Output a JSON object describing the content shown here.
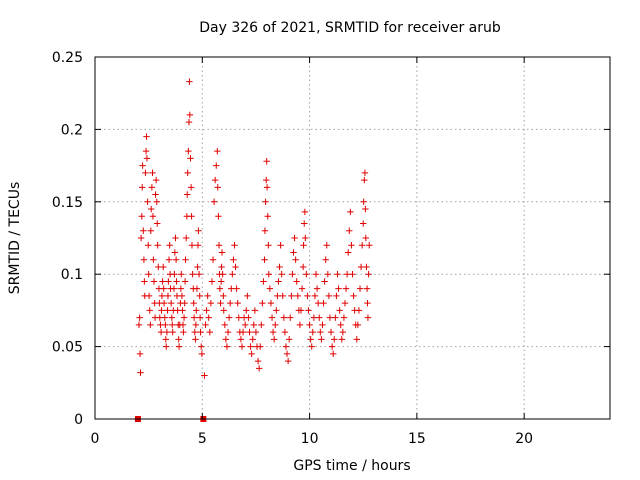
{
  "chart_data": {
    "type": "scatter",
    "title": "Day 326 of 2021, SRMTID for receiver arub",
    "xlabel": "GPS time / hours",
    "ylabel": "SRMTID / TECUs",
    "xlim": [
      0,
      24
    ],
    "ylim": [
      0,
      0.25
    ],
    "xticks": [
      0,
      5,
      10,
      15,
      20
    ],
    "xtick_labels": [
      "0",
      "5",
      "10",
      "15",
      "20"
    ],
    "yticks": [
      0,
      0.05,
      0.1,
      0.15,
      0.2,
      0.25
    ],
    "ytick_labels": [
      "0",
      "0.05",
      "0.1",
      "0.15",
      "0.2",
      "0.25"
    ],
    "grid": true,
    "marker": "plus",
    "color": "#e00000",
    "zero_markers": [
      {
        "x": 2.0,
        "y": 0
      },
      {
        "x": 5.05,
        "y": 0
      }
    ],
    "points": [
      [
        2.05,
        0.065
      ],
      [
        2.08,
        0.07
      ],
      [
        2.1,
        0.045
      ],
      [
        2.12,
        0.032
      ],
      [
        2.15,
        0.125
      ],
      [
        2.18,
        0.14
      ],
      [
        2.2,
        0.16
      ],
      [
        2.22,
        0.175
      ],
      [
        2.25,
        0.13
      ],
      [
        2.28,
        0.11
      ],
      [
        2.3,
        0.095
      ],
      [
        2.32,
        0.085
      ],
      [
        2.35,
        0.17
      ],
      [
        2.38,
        0.185
      ],
      [
        2.4,
        0.195
      ],
      [
        2.42,
        0.18
      ],
      [
        2.45,
        0.15
      ],
      [
        2.48,
        0.12
      ],
      [
        2.5,
        0.1
      ],
      [
        2.52,
        0.085
      ],
      [
        2.55,
        0.075
      ],
      [
        2.58,
        0.065
      ],
      [
        2.6,
        0.13
      ],
      [
        2.62,
        0.145
      ],
      [
        2.65,
        0.16
      ],
      [
        2.68,
        0.17
      ],
      [
        2.7,
        0.14
      ],
      [
        2.72,
        0.11
      ],
      [
        2.75,
        0.095
      ],
      [
        2.78,
        0.08
      ],
      [
        2.8,
        0.07
      ],
      [
        2.82,
        0.155
      ],
      [
        2.85,
        0.165
      ],
      [
        2.88,
        0.15
      ],
      [
        2.9,
        0.135
      ],
      [
        2.92,
        0.12
      ],
      [
        2.95,
        0.105
      ],
      [
        2.98,
        0.09
      ],
      [
        3.0,
        0.08
      ],
      [
        3.02,
        0.07
      ],
      [
        3.05,
        0.065
      ],
      [
        3.08,
        0.06
      ],
      [
        3.1,
        0.075
      ],
      [
        3.12,
        0.085
      ],
      [
        3.15,
        0.095
      ],
      [
        3.18,
        0.105
      ],
      [
        3.2,
        0.09
      ],
      [
        3.22,
        0.08
      ],
      [
        3.25,
        0.07
      ],
      [
        3.28,
        0.065
      ],
      [
        3.3,
        0.055
      ],
      [
        3.32,
        0.05
      ],
      [
        3.35,
        0.06
      ],
      [
        3.38,
        0.075
      ],
      [
        3.4,
        0.085
      ],
      [
        3.42,
        0.095
      ],
      [
        3.45,
        0.11
      ],
      [
        3.48,
        0.12
      ],
      [
        3.5,
        0.1
      ],
      [
        3.52,
        0.09
      ],
      [
        3.55,
        0.08
      ],
      [
        3.58,
        0.07
      ],
      [
        3.6,
        0.065
      ],
      [
        3.62,
        0.06
      ],
      [
        3.65,
        0.075
      ],
      [
        3.68,
        0.09
      ],
      [
        3.7,
        0.1
      ],
      [
        3.72,
        0.115
      ],
      [
        3.75,
        0.125
      ],
      [
        3.78,
        0.11
      ],
      [
        3.8,
        0.095
      ],
      [
        3.82,
        0.085
      ],
      [
        3.85,
        0.075
      ],
      [
        3.88,
        0.065
      ],
      [
        3.9,
        0.055
      ],
      [
        3.92,
        0.05
      ],
      [
        3.95,
        0.065
      ],
      [
        3.98,
        0.08
      ],
      [
        4.0,
        0.09
      ],
      [
        4.02,
        0.1
      ],
      [
        4.05,
        0.085
      ],
      [
        4.08,
        0.075
      ],
      [
        4.1,
        0.065
      ],
      [
        4.12,
        0.06
      ],
      [
        4.15,
        0.07
      ],
      [
        4.18,
        0.08
      ],
      [
        4.2,
        0.095
      ],
      [
        4.22,
        0.11
      ],
      [
        4.25,
        0.125
      ],
      [
        4.28,
        0.14
      ],
      [
        4.3,
        0.155
      ],
      [
        4.32,
        0.17
      ],
      [
        4.35,
        0.185
      ],
      [
        4.38,
        0.205
      ],
      [
        4.4,
        0.233
      ],
      [
        4.42,
        0.21
      ],
      [
        4.45,
        0.18
      ],
      [
        4.48,
        0.16
      ],
      [
        4.5,
        0.14
      ],
      [
        4.52,
        0.12
      ],
      [
        4.55,
        0.1
      ],
      [
        4.58,
        0.09
      ],
      [
        4.6,
        0.08
      ],
      [
        4.62,
        0.07
      ],
      [
        4.65,
        0.06
      ],
      [
        4.68,
        0.055
      ],
      [
        4.7,
        0.065
      ],
      [
        4.72,
        0.075
      ],
      [
        4.75,
        0.09
      ],
      [
        4.78,
        0.105
      ],
      [
        4.8,
        0.12
      ],
      [
        4.82,
        0.13
      ],
      [
        4.85,
        0.1
      ],
      [
        4.88,
        0.085
      ],
      [
        4.9,
        0.07
      ],
      [
        4.92,
        0.06
      ],
      [
        4.95,
        0.05
      ],
      [
        4.98,
        0.045
      ],
      [
        5.1,
        0.03
      ],
      [
        5.15,
        0.065
      ],
      [
        5.2,
        0.075
      ],
      [
        5.25,
        0.085
      ],
      [
        5.3,
        0.07
      ],
      [
        5.35,
        0.06
      ],
      [
        5.4,
        0.08
      ],
      [
        5.45,
        0.095
      ],
      [
        5.5,
        0.11
      ],
      [
        5.55,
        0.15
      ],
      [
        5.6,
        0.165
      ],
      [
        5.65,
        0.175
      ],
      [
        5.7,
        0.185
      ],
      [
        5.72,
        0.16
      ],
      [
        5.75,
        0.14
      ],
      [
        5.78,
        0.12
      ],
      [
        5.8,
        0.1
      ],
      [
        5.82,
        0.09
      ],
      [
        5.85,
        0.08
      ],
      [
        5.88,
        0.095
      ],
      [
        5.9,
        0.105
      ],
      [
        5.92,
        0.115
      ],
      [
        5.95,
        0.1
      ],
      [
        5.98,
        0.085
      ],
      [
        6.0,
        0.075
      ],
      [
        6.05,
        0.065
      ],
      [
        6.1,
        0.055
      ],
      [
        6.15,
        0.05
      ],
      [
        6.2,
        0.06
      ],
      [
        6.25,
        0.07
      ],
      [
        6.3,
        0.08
      ],
      [
        6.35,
        0.09
      ],
      [
        6.4,
        0.1
      ],
      [
        6.45,
        0.11
      ],
      [
        6.5,
        0.12
      ],
      [
        6.55,
        0.105
      ],
      [
        6.6,
        0.09
      ],
      [
        6.65,
        0.08
      ],
      [
        6.7,
        0.07
      ],
      [
        6.75,
        0.06
      ],
      [
        6.8,
        0.055
      ],
      [
        6.85,
        0.05
      ],
      [
        6.9,
        0.06
      ],
      [
        6.95,
        0.07
      ],
      [
        7.0,
        0.065
      ],
      [
        7.05,
        0.075
      ],
      [
        7.1,
        0.085
      ],
      [
        7.15,
        0.07
      ],
      [
        7.2,
        0.06
      ],
      [
        7.25,
        0.05
      ],
      [
        7.3,
        0.045
      ],
      [
        7.35,
        0.055
      ],
      [
        7.4,
        0.065
      ],
      [
        7.45,
        0.075
      ],
      [
        7.5,
        0.06
      ],
      [
        7.55,
        0.05
      ],
      [
        7.6,
        0.04
      ],
      [
        7.65,
        0.035
      ],
      [
        7.7,
        0.05
      ],
      [
        7.75,
        0.065
      ],
      [
        7.8,
        0.08
      ],
      [
        7.85,
        0.095
      ],
      [
        7.9,
        0.11
      ],
      [
        7.92,
        0.13
      ],
      [
        7.95,
        0.15
      ],
      [
        7.98,
        0.165
      ],
      [
        8.0,
        0.178
      ],
      [
        8.02,
        0.16
      ],
      [
        8.05,
        0.14
      ],
      [
        8.08,
        0.12
      ],
      [
        8.1,
        0.1
      ],
      [
        8.15,
        0.09
      ],
      [
        8.2,
        0.08
      ],
      [
        8.25,
        0.07
      ],
      [
        8.3,
        0.06
      ],
      [
        8.35,
        0.055
      ],
      [
        8.4,
        0.065
      ],
      [
        8.45,
        0.075
      ],
      [
        8.5,
        0.085
      ],
      [
        8.55,
        0.095
      ],
      [
        8.6,
        0.105
      ],
      [
        8.65,
        0.12
      ],
      [
        8.7,
        0.1
      ],
      [
        8.75,
        0.085
      ],
      [
        8.8,
        0.07
      ],
      [
        8.85,
        0.06
      ],
      [
        8.9,
        0.05
      ],
      [
        8.95,
        0.045
      ],
      [
        9.0,
        0.04
      ],
      [
        9.05,
        0.055
      ],
      [
        9.1,
        0.07
      ],
      [
        9.15,
        0.085
      ],
      [
        9.2,
        0.1
      ],
      [
        9.25,
        0.115
      ],
      [
        9.3,
        0.125
      ],
      [
        9.35,
        0.11
      ],
      [
        9.4,
        0.095
      ],
      [
        9.45,
        0.085
      ],
      [
        9.5,
        0.075
      ],
      [
        9.55,
        0.065
      ],
      [
        9.6,
        0.075
      ],
      [
        9.65,
        0.09
      ],
      [
        9.7,
        0.105
      ],
      [
        9.72,
        0.12
      ],
      [
        9.75,
        0.135
      ],
      [
        9.78,
        0.143
      ],
      [
        9.8,
        0.125
      ],
      [
        9.85,
        0.1
      ],
      [
        9.9,
        0.085
      ],
      [
        9.95,
        0.075
      ],
      [
        10.0,
        0.065
      ],
      [
        10.05,
        0.055
      ],
      [
        10.1,
        0.05
      ],
      [
        10.15,
        0.06
      ],
      [
        10.2,
        0.07
      ],
      [
        10.25,
        0.085
      ],
      [
        10.3,
        0.1
      ],
      [
        10.35,
        0.09
      ],
      [
        10.4,
        0.08
      ],
      [
        10.45,
        0.07
      ],
      [
        10.5,
        0.06
      ],
      [
        10.55,
        0.055
      ],
      [
        10.6,
        0.065
      ],
      [
        10.65,
        0.08
      ],
      [
        10.7,
        0.095
      ],
      [
        10.75,
        0.11
      ],
      [
        10.8,
        0.12
      ],
      [
        10.85,
        0.1
      ],
      [
        10.9,
        0.085
      ],
      [
        10.95,
        0.07
      ],
      [
        11.0,
        0.06
      ],
      [
        11.05,
        0.05
      ],
      [
        11.1,
        0.045
      ],
      [
        11.15,
        0.055
      ],
      [
        11.2,
        0.07
      ],
      [
        11.25,
        0.085
      ],
      [
        11.3,
        0.1
      ],
      [
        11.35,
        0.09
      ],
      [
        11.4,
        0.075
      ],
      [
        11.45,
        0.065
      ],
      [
        11.5,
        0.055
      ],
      [
        11.55,
        0.06
      ],
      [
        11.6,
        0.07
      ],
      [
        11.65,
        0.08
      ],
      [
        11.7,
        0.09
      ],
      [
        11.75,
        0.1
      ],
      [
        11.8,
        0.115
      ],
      [
        11.85,
        0.13
      ],
      [
        11.9,
        0.143
      ],
      [
        11.95,
        0.12
      ],
      [
        12.0,
        0.1
      ],
      [
        12.05,
        0.085
      ],
      [
        12.1,
        0.075
      ],
      [
        12.15,
        0.065
      ],
      [
        12.2,
        0.055
      ],
      [
        12.25,
        0.065
      ],
      [
        12.3,
        0.075
      ],
      [
        12.35,
        0.09
      ],
      [
        12.4,
        0.105
      ],
      [
        12.45,
        0.12
      ],
      [
        12.5,
        0.135
      ],
      [
        12.52,
        0.15
      ],
      [
        12.55,
        0.165
      ],
      [
        12.58,
        0.17
      ],
      [
        12.6,
        0.145
      ],
      [
        12.62,
        0.125
      ],
      [
        12.65,
        0.105
      ],
      [
        12.68,
        0.09
      ],
      [
        12.7,
        0.08
      ],
      [
        12.72,
        0.07
      ],
      [
        12.75,
        0.1
      ],
      [
        12.78,
        0.12
      ]
    ]
  }
}
